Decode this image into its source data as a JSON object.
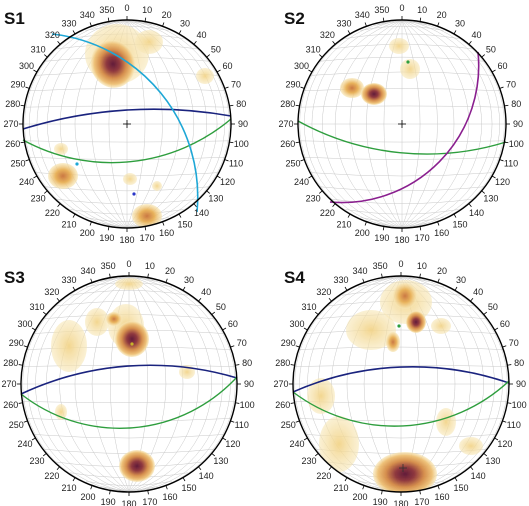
{
  "panels": [
    {
      "label": "S1",
      "tick_labels": [
        "350",
        "0",
        "10",
        "20",
        "30",
        "40",
        "50",
        "60",
        "70",
        "80",
        "90",
        "100",
        "110",
        "120",
        "130",
        "140",
        "150",
        "160",
        "170",
        "180",
        "190",
        "200",
        "210",
        "220",
        "230",
        "240",
        "250",
        "260",
        "270",
        "280",
        "290",
        "300",
        "310",
        "320",
        "330",
        "340"
      ],
      "great_circles": [
        "navy",
        "green",
        "cyan"
      ]
    },
    {
      "label": "S2",
      "tick_labels": [
        "350",
        "0",
        "10",
        "20",
        "30",
        "40",
        "50",
        "60",
        "70",
        "80",
        "90",
        "100",
        "110",
        "120",
        "130",
        "140",
        "150",
        "160",
        "170",
        "180",
        "190",
        "200",
        "210",
        "220",
        "230",
        "240",
        "250",
        "260",
        "270",
        "280",
        "290",
        "300",
        "310",
        "320",
        "330",
        "340"
      ],
      "great_circles": [
        "green",
        "purple"
      ]
    },
    {
      "label": "S3",
      "tick_labels": [
        "350",
        "0",
        "10",
        "20",
        "30",
        "40",
        "50",
        "60",
        "70",
        "80",
        "90",
        "100",
        "110",
        "120",
        "130",
        "140",
        "150",
        "160",
        "170",
        "180",
        "190",
        "200",
        "210",
        "220",
        "230",
        "240",
        "250",
        "260",
        "270",
        "280",
        "290",
        "300",
        "310",
        "320",
        "330",
        "340"
      ],
      "great_circles": [
        "navy",
        "green"
      ]
    },
    {
      "label": "S4",
      "tick_labels": [
        "350",
        "0",
        "10",
        "20",
        "30",
        "40",
        "50",
        "60",
        "70",
        "80",
        "90",
        "100",
        "110",
        "120",
        "130",
        "140",
        "150",
        "160",
        "170",
        "180",
        "190",
        "200",
        "210",
        "220",
        "230",
        "240",
        "250",
        "260",
        "270",
        "280",
        "290",
        "300",
        "310",
        "320",
        "330",
        "340"
      ],
      "great_circles": [
        "navy",
        "green"
      ]
    }
  ],
  "colors": {
    "outline": "#000000",
    "grid": "#c8c8c8",
    "navy": "#1a237e",
    "green": "#2e9e3e",
    "cyan": "#1ea7d6",
    "purple": "#8a1f8f",
    "density_low": "#f7e6b5",
    "density_mid": "#e8b055",
    "density_high": "#c8723a",
    "density_max": "#6e1a2e"
  }
}
